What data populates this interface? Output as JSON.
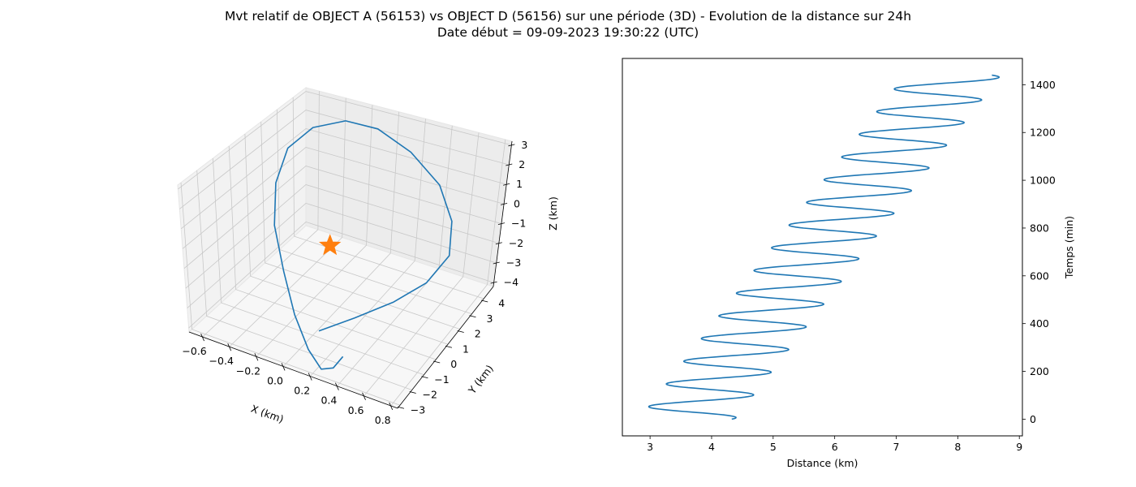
{
  "figure": {
    "title_line1": "Mvt relatif de OBJECT A (56153) vs OBJECT D (56156) sur une période (3D) - Evolution de la distance sur 24h",
    "title_line2": "Date début = 09-09-2023 19:30:22 (UTC)"
  },
  "chart_data": [
    {
      "type": "line",
      "projection": "3d",
      "xlabel": "X (km)",
      "ylabel": "Y (km)",
      "zlabel": "Z (km)",
      "xlim": [
        -0.7,
        0.85
      ],
      "ylim": [
        -3.2,
        4.8
      ],
      "zlim": [
        -4.2,
        3.2
      ],
      "x_ticks": [
        "−0.6",
        "−0.4",
        "−0.2",
        "0.0",
        "0.2",
        "0.4",
        "0.6",
        "0.8"
      ],
      "y_ticks": [
        "−3",
        "−2",
        "−1",
        "0",
        "1",
        "2",
        "3",
        "4"
      ],
      "z_ticks": [
        "3",
        "2",
        "1",
        "0",
        "−1",
        "−2",
        "−3",
        "−4"
      ],
      "grid": true,
      "series": [
        {
          "color": "#1f77b4",
          "comment_points": "trajectory x,y,z in km",
          "x": [
            0.2,
            0.4,
            0.6,
            0.75,
            0.8,
            0.7,
            0.5,
            0.2,
            -0.1,
            -0.35,
            -0.55,
            -0.65,
            -0.62,
            -0.5,
            -0.3,
            -0.1,
            0.1,
            0.25,
            0.35,
            0.4
          ],
          "y": [
            -2.6,
            -2.0,
            -1.2,
            -0.3,
            0.8,
            1.9,
            2.9,
            3.7,
            4.2,
            4.3,
            3.9,
            3.1,
            2.0,
            0.8,
            -0.4,
            -1.5,
            -2.4,
            -2.9,
            -3.0,
            -2.8
          ],
          "z": [
            -2.2,
            -1.4,
            -0.6,
            0.2,
            1.0,
            1.8,
            2.5,
            2.9,
            3.0,
            2.7,
            2.1,
            1.3,
            0.3,
            -0.8,
            -1.9,
            -2.9,
            -3.6,
            -3.9,
            -3.5,
            -2.9
          ]
        },
        {
          "marker": "star",
          "color": "#ff7f0e",
          "x": [
            0.0
          ],
          "y": [
            0.0
          ],
          "z": [
            0.0
          ]
        }
      ]
    },
    {
      "type": "line",
      "xlabel": "Distance (km)",
      "ylabel": "Temps (min)",
      "xlim": [
        2.55,
        9.05
      ],
      "ylim": [
        -70,
        1510
      ],
      "x_ticks": [
        3,
        4,
        5,
        6,
        7,
        8,
        9
      ],
      "y_ticks": [
        0,
        200,
        400,
        600,
        800,
        1000,
        1200,
        1400
      ],
      "y_axis_side": "right",
      "series": [
        {
          "color": "#1f77b4",
          "function": "distance = 3.6 + 0.003*t + 0.78*sin(2*pi*t/95 + 1.2), t = 0..1440 min"
        }
      ]
    }
  ]
}
